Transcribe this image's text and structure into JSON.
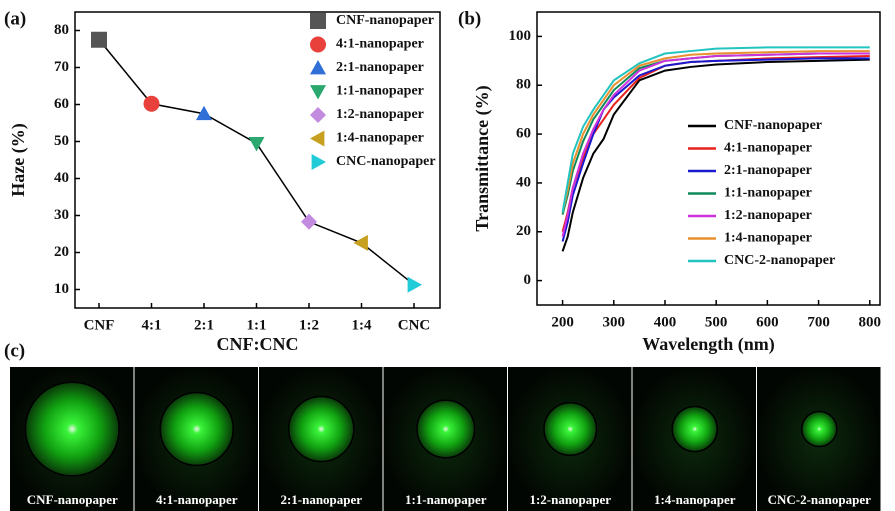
{
  "panel_labels": [
    "(a)",
    "(b)",
    "(c)"
  ],
  "chart_data": [
    {
      "type": "line",
      "xlabel": "CNF:CNC",
      "ylabel": "Haze (%)",
      "categories": [
        "CNF",
        "4:1",
        "2:1",
        "1:1",
        "1:2",
        "1:4",
        "CNC"
      ],
      "values": [
        77.5,
        60.2,
        57.5,
        49.5,
        28.3,
        22.6,
        11.3
      ],
      "line_color": "#000000",
      "points": [
        {
          "name": "CNF-nanopaper",
          "color": "#555555",
          "marker": "square"
        },
        {
          "name": "4:1-nanopaper",
          "color": "#e8413c",
          "marker": "circle"
        },
        {
          "name": "2:1-nanopaper",
          "color": "#2f6fd6",
          "marker": "triangle-up"
        },
        {
          "name": "1:1-nanopaper",
          "color": "#2aa870",
          "marker": "triangle-down"
        },
        {
          "name": "1:2-nanopaper",
          "color": "#c38be0",
          "marker": "diamond"
        },
        {
          "name": "1:4-nanopaper",
          "color": "#c7a020",
          "marker": "triangle-left"
        },
        {
          "name": "CNC-nanopaper",
          "color": "#22cbd8",
          "marker": "triangle-right"
        }
      ],
      "ylim": [
        5,
        85
      ],
      "yticks": [
        10,
        20,
        30,
        40,
        50,
        60,
        70,
        80
      ],
      "legend": "upper right"
    },
    {
      "type": "line",
      "xlabel": "Wavelength (nm)",
      "ylabel": "Transmittance (%)",
      "x": [
        200,
        210,
        220,
        240,
        260,
        280,
        300,
        350,
        400,
        450,
        500,
        600,
        700,
        800
      ],
      "series": [
        {
          "name": "CNF-nanopaper",
          "color": "#000000",
          "values": [
            12,
            18,
            28,
            42,
            52,
            58,
            68,
            82,
            86,
            87.5,
            88.5,
            89.5,
            90,
            90.5
          ]
        },
        {
          "name": "4:1-nanopaper",
          "color": "#e8211c",
          "values": [
            20,
            28,
            38,
            50,
            60,
            66,
            72,
            83,
            88,
            89.5,
            90,
            91,
            91.5,
            92
          ]
        },
        {
          "name": "2:1-nanopaper",
          "color": "#1a1ad0",
          "values": [
            16,
            24,
            35,
            48,
            60,
            70,
            75,
            84,
            88,
            89.5,
            90,
            90.5,
            91,
            91
          ]
        },
        {
          "name": "1:1-nanopaper",
          "color": "#0f8a5a",
          "values": [
            27,
            35,
            45,
            57,
            66,
            72,
            78,
            87,
            90,
            91,
            92,
            92.5,
            93,
            93
          ]
        },
        {
          "name": "1:2-nanopaper",
          "color": "#cc33dd",
          "values": [
            18,
            27,
            38,
            52,
            62,
            70,
            76,
            86,
            90,
            91,
            92,
            92.5,
            93,
            93
          ]
        },
        {
          "name": "1:4-nanopaper",
          "color": "#e89030",
          "values": [
            28,
            37,
            48,
            60,
            68,
            74,
            80,
            88,
            91,
            92.5,
            93,
            93.5,
            94,
            94
          ]
        },
        {
          "name": "CNC-2-nanopaper",
          "color": "#22c4c0",
          "values": [
            28,
            40,
            52,
            63,
            70,
            76,
            82,
            89,
            93,
            94,
            95,
            95.5,
            95.5,
            95.5
          ]
        }
      ],
      "xlim": [
        150,
        820
      ],
      "xticks": [
        200,
        300,
        400,
        500,
        600,
        700,
        800
      ],
      "ylim": [
        -10,
        110
      ],
      "yticks": [
        0,
        20,
        40,
        60,
        80,
        100
      ],
      "legend": "lower right"
    }
  ],
  "photos": {
    "captions": [
      "CNF-nanopaper",
      "4:1-nanopaper",
      "2:1-nanopaper",
      "1:1-nanopaper",
      "1:2-nanopaper",
      "1:4-nanopaper",
      "CNC-2-nanopaper"
    ]
  }
}
